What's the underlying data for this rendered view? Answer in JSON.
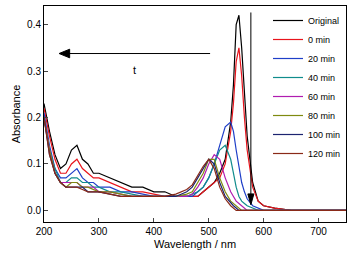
{
  "chart_data": {
    "type": "line",
    "x_label": "Wavelength / nm",
    "y_label": "Absorbance",
    "x": [
      200,
      210,
      220,
      230,
      240,
      250,
      260,
      270,
      280,
      290,
      300,
      320,
      340,
      360,
      380,
      400,
      420,
      440,
      460,
      470,
      480,
      490,
      500,
      510,
      520,
      530,
      540,
      545,
      550,
      555,
      560,
      565,
      570,
      580,
      590,
      600,
      620,
      650,
      700,
      750
    ],
    "series": [
      {
        "name": "Original",
        "color": "#000000",
        "values": [
          0.23,
          0.17,
          0.12,
          0.09,
          0.1,
          0.13,
          0.14,
          0.11,
          0.1,
          0.08,
          0.08,
          0.07,
          0.06,
          0.05,
          0.05,
          0.04,
          0.04,
          0.03,
          0.03,
          0.03,
          0.03,
          0.04,
          0.05,
          0.06,
          0.08,
          0.11,
          0.19,
          0.27,
          0.4,
          0.42,
          0.35,
          0.25,
          0.16,
          0.06,
          0.02,
          0.01,
          0.005,
          0,
          0,
          0
        ]
      },
      {
        "name": "0 min",
        "color": "#e8141c",
        "values": [
          0.22,
          0.16,
          0.11,
          0.08,
          0.08,
          0.1,
          0.11,
          0.09,
          0.08,
          0.07,
          0.07,
          0.06,
          0.05,
          0.04,
          0.04,
          0.035,
          0.03,
          0.03,
          0.03,
          0.03,
          0.03,
          0.04,
          0.05,
          0.06,
          0.07,
          0.1,
          0.17,
          0.23,
          0.32,
          0.35,
          0.29,
          0.2,
          0.13,
          0.05,
          0.02,
          0.01,
          0.005,
          0,
          0,
          0
        ]
      },
      {
        "name": "20 min",
        "color": "#1f3fc8",
        "values": [
          0.21,
          0.14,
          0.09,
          0.07,
          0.07,
          0.08,
          0.09,
          0.07,
          0.06,
          0.06,
          0.05,
          0.05,
          0.04,
          0.04,
          0.035,
          0.03,
          0.03,
          0.03,
          0.03,
          0.03,
          0.04,
          0.05,
          0.07,
          0.1,
          0.14,
          0.18,
          0.19,
          0.17,
          0.13,
          0.09,
          0.06,
          0.04,
          0.025,
          0.01,
          0.005,
          0,
          0,
          0,
          0,
          0
        ]
      },
      {
        "name": "40 min",
        "color": "#108c8c",
        "values": [
          0.2,
          0.13,
          0.09,
          0.06,
          0.06,
          0.07,
          0.07,
          0.06,
          0.06,
          0.05,
          0.05,
          0.04,
          0.04,
          0.035,
          0.03,
          0.03,
          0.03,
          0.03,
          0.03,
          0.035,
          0.04,
          0.05,
          0.07,
          0.1,
          0.13,
          0.14,
          0.11,
          0.08,
          0.05,
          0.03,
          0.02,
          0.015,
          0.01,
          0.005,
          0,
          0,
          0,
          0,
          0,
          0
        ]
      },
      {
        "name": "60 min",
        "color": "#b01cb0",
        "values": [
          0.2,
          0.13,
          0.08,
          0.06,
          0.06,
          0.06,
          0.06,
          0.05,
          0.05,
          0.05,
          0.04,
          0.04,
          0.035,
          0.03,
          0.03,
          0.03,
          0.03,
          0.03,
          0.03,
          0.035,
          0.05,
          0.07,
          0.1,
          0.12,
          0.11,
          0.07,
          0.04,
          0.03,
          0.02,
          0.015,
          0.01,
          0.005,
          0,
          0,
          0,
          0,
          0,
          0,
          0,
          0
        ]
      },
      {
        "name": "80 min",
        "color": "#7f8a10",
        "values": [
          0.2,
          0.13,
          0.08,
          0.06,
          0.05,
          0.06,
          0.06,
          0.05,
          0.05,
          0.045,
          0.04,
          0.04,
          0.035,
          0.03,
          0.03,
          0.03,
          0.03,
          0.03,
          0.035,
          0.04,
          0.06,
          0.08,
          0.11,
          0.11,
          0.07,
          0.04,
          0.02,
          0.015,
          0.01,
          0.005,
          0,
          0,
          0,
          0,
          0,
          0,
          0,
          0,
          0,
          0
        ]
      },
      {
        "name": "100 min",
        "color": "#1c2470",
        "values": [
          0.2,
          0.12,
          0.08,
          0.06,
          0.05,
          0.05,
          0.05,
          0.05,
          0.04,
          0.04,
          0.04,
          0.035,
          0.03,
          0.03,
          0.03,
          0.03,
          0.03,
          0.03,
          0.04,
          0.05,
          0.07,
          0.09,
          0.11,
          0.1,
          0.06,
          0.03,
          0.015,
          0.01,
          0.005,
          0,
          0,
          0,
          0,
          0,
          0,
          0,
          0,
          0,
          0,
          0
        ]
      },
      {
        "name": "120 min",
        "color": "#8a2a18",
        "values": [
          0.2,
          0.12,
          0.08,
          0.06,
          0.05,
          0.05,
          0.05,
          0.045,
          0.04,
          0.04,
          0.04,
          0.035,
          0.03,
          0.03,
          0.03,
          0.03,
          0.03,
          0.035,
          0.045,
          0.055,
          0.075,
          0.095,
          0.11,
          0.09,
          0.05,
          0.025,
          0.01,
          0.005,
          0,
          0,
          0,
          0,
          0,
          0,
          0,
          0,
          0,
          0,
          0,
          0
        ]
      }
    ],
    "xlim": [
      200,
      750
    ],
    "ylim": [
      -0.025,
      0.44
    ],
    "xticks": [
      200,
      300,
      400,
      500,
      600,
      700
    ],
    "yticks": [
      {
        "value": 0,
        "label": "0.0"
      },
      0.1,
      0.2,
      0.3,
      0.4
    ],
    "grid": false,
    "legend": "top right",
    "annotations": [
      {
        "text": "t"
      }
    ]
  }
}
